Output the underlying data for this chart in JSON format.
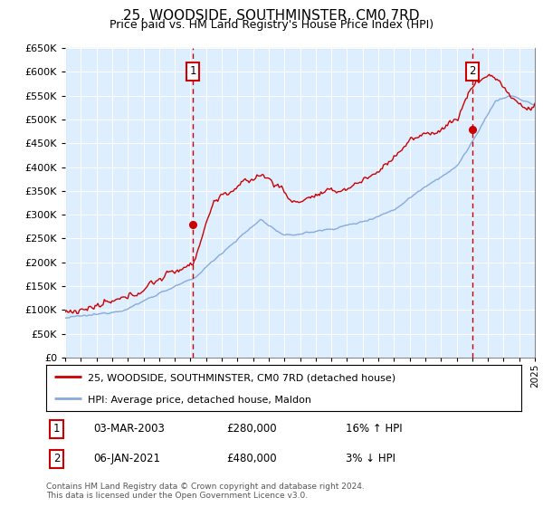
{
  "title": "25, WOODSIDE, SOUTHMINSTER, CM0 7RD",
  "subtitle": "Price paid vs. HM Land Registry's House Price Index (HPI)",
  "legend_line1": "25, WOODSIDE, SOUTHMINSTER, CM0 7RD (detached house)",
  "legend_line2": "HPI: Average price, detached house, Maldon",
  "annotation1_date": "03-MAR-2003",
  "annotation1_price": "£280,000",
  "annotation1_hpi": "16% ↑ HPI",
  "annotation2_date": "06-JAN-2021",
  "annotation2_price": "£480,000",
  "annotation2_hpi": "3% ↓ HPI",
  "footer1": "Contains HM Land Registry data © Crown copyright and database right 2024.",
  "footer2": "This data is licensed under the Open Government Licence v3.0.",
  "red_color": "#cc0000",
  "blue_color": "#88aadd",
  "plot_bg": "#ddeeff",
  "ylim_min": 0,
  "ylim_max": 650000,
  "sale1_year": 2003.17,
  "sale1_price": 280000,
  "sale2_year": 2021.02,
  "sale2_price": 480000
}
